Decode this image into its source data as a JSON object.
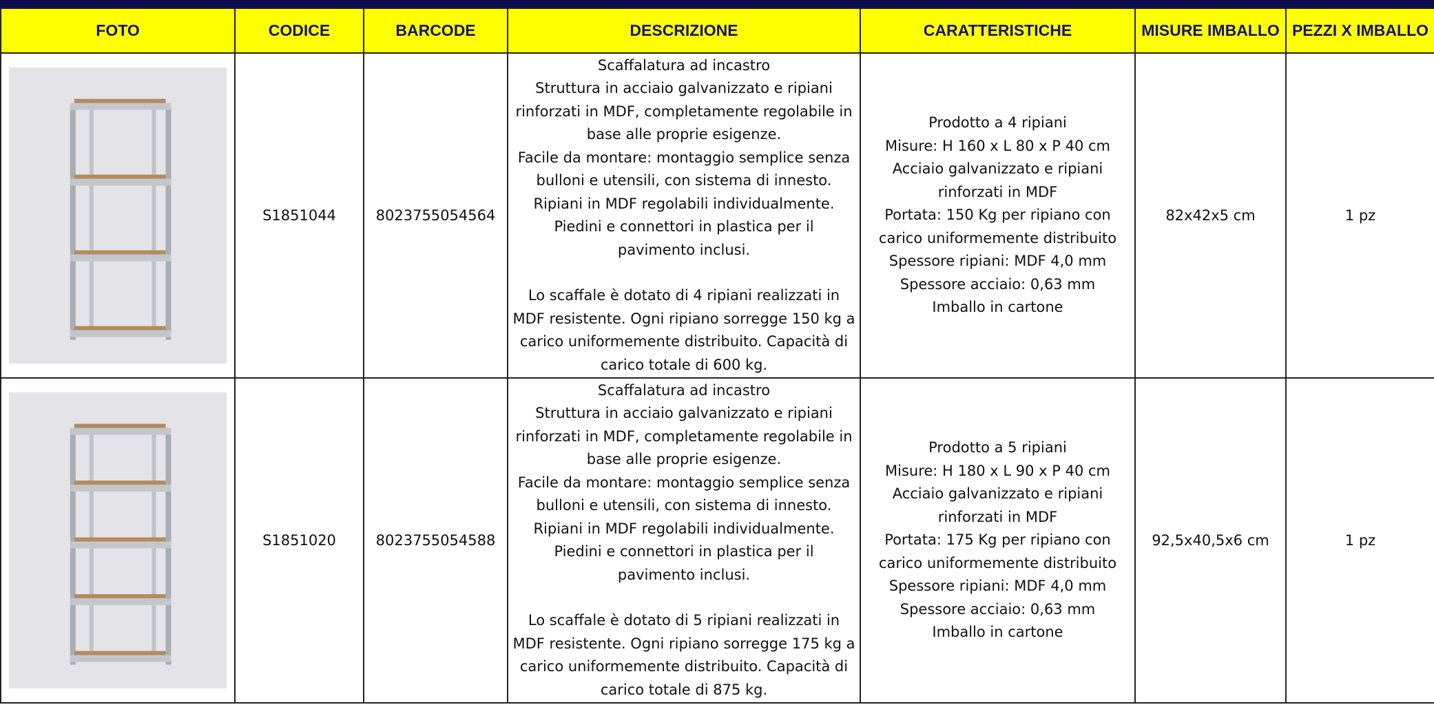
{
  "table": {
    "header": [
      "FOTO",
      "CODICE",
      "BARCODE",
      "DESCRIZIONE",
      "CARATTERISTICHE",
      "MISURE IMBALLO",
      "PEZZI X IMBALLO"
    ],
    "rows": [
      {
        "codice": "S1851044",
        "barcode": "8023755054564",
        "descrizione": [
          [
            "Scaffalatura ad incastro",
            "Struttura in acciaio galvanizzato e ripiani",
            "rinforzati in MDF, completamente regolabile in",
            "base alle proprie esigenze.",
            "Facile da montare: montaggio semplice senza",
            "bulloni e utensili, con sistema di innesto.",
            "Ripiani in MDF regolabili individualmente.",
            "Piedini e connettori in plastica per il",
            "pavimento inclusi."
          ],
          [
            "Lo scaffale è dotato di 4 ripiani realizzati in",
            "MDF resistente. Ogni ripiano sorregge 150 kg a",
            "carico uniformemente distribuito. Capacità di",
            "carico totale di 600 kg."
          ]
        ],
        "caratteristiche": [
          "Prodotto a 4 ripiani",
          "Misure: H 160 x L 80 x P 40 cm",
          "Acciaio galvanizzato e ripiani",
          "rinforzati in MDF",
          "Portata: 150 Kg per ripiano con",
          "carico uniformemente distribuito",
          "Spessore ripiani: MDF 4,0 mm",
          "Spessore acciaio: 0,63 mm",
          "Imballo in cartone"
        ],
        "misure": "82x42x5 cm",
        "pezzi": "1 pz"
      },
      {
        "codice": "S1851020",
        "barcode": "8023755054588",
        "descrizione": [
          [
            "Scaffalatura ad incastro",
            "Struttura in acciaio galvanizzato e ripiani",
            "rinforzati in MDF, completamente regolabile in",
            "base alle proprie esigenze.",
            "Facile da montare: montaggio semplice senza",
            "bulloni e utensili, con sistema di innesto.",
            "Ripiani in MDF regolabili individualmente.",
            "Piedini e connettori in plastica per il",
            "pavimento inclusi."
          ],
          [
            "Lo scaffale è dotato di 5 ripiani realizzati in",
            "MDF resistente. Ogni ripiano sorregge 175 kg a",
            "carico uniformemente distribuito. Capacità di",
            "carico totale di 875 kg."
          ]
        ],
        "caratteristiche": [
          "Prodotto a 5 ripiani",
          "Misure: H 180 x L 90 x P 40 cm",
          "Acciaio galvanizzato e ripiani",
          "rinforzati in MDF",
          "Portata: 175 Kg per ripiano con",
          "carico uniformemente distribuito",
          "Spessore ripiani: MDF 4,0 mm",
          "Spessore acciaio: 0,63 mm",
          "Imballo in cartone"
        ],
        "misure": "92,5x40,5x6 cm",
        "pezzi": "1 pz"
      }
    ]
  }
}
